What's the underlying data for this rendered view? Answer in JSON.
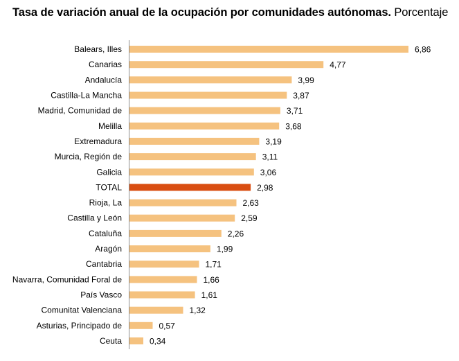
{
  "chart_data": {
    "type": "bar",
    "orientation": "horizontal",
    "title": "Tasa de variación anual de la ocupación por comunidades autónomas.",
    "subtitle": "Porcentaje",
    "xlabel": "",
    "ylabel": "",
    "xlim": [
      0,
      6.86
    ],
    "grid": false,
    "legend": "none",
    "categories": [
      "Balears, Illes",
      "Canarias",
      "Andalucía",
      "Castilla-La Mancha",
      "Madrid, Comunidad de",
      "Melilla",
      "Extremadura",
      "Murcia, Región de",
      "Galicia",
      "TOTAL",
      "Rioja, La",
      "Castilla y León",
      "Cataluña",
      "Aragón",
      "Cantabria",
      "Navarra, Comunidad Foral de",
      "País Vasco",
      "Comunitat Valenciana",
      "Asturias, Principado de",
      "Ceuta"
    ],
    "values": [
      6.86,
      4.77,
      3.99,
      3.87,
      3.71,
      3.68,
      3.19,
      3.11,
      3.06,
      2.98,
      2.63,
      2.59,
      2.26,
      1.99,
      1.71,
      1.66,
      1.61,
      1.32,
      0.57,
      0.34
    ],
    "value_labels": [
      "6,86",
      "4,77",
      "3,99",
      "3,87",
      "3,71",
      "3,68",
      "3,19",
      "3,11",
      "3,06",
      "2,98",
      "2,63",
      "2,59",
      "2,26",
      "1,99",
      "1,71",
      "1,66",
      "1,61",
      "1,32",
      "0,57",
      "0,34"
    ],
    "highlight_category": "TOTAL",
    "colors": {
      "bar": "#f5c27f",
      "highlight": "#d94e12",
      "axis": "#8c8c8c"
    }
  }
}
